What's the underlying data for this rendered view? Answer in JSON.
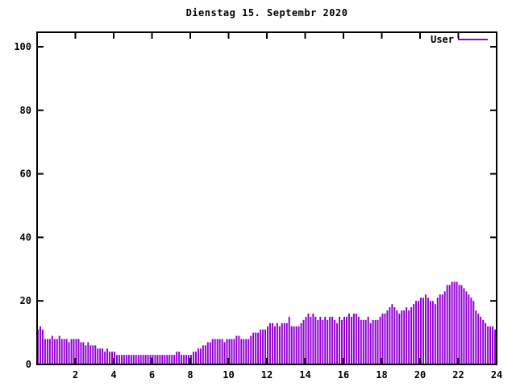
{
  "window": {
    "background": "#ffffff"
  },
  "chart_data": {
    "type": "bar",
    "title": "Dienstag 15. Septembr 2020",
    "xlabel": "",
    "ylabel": "",
    "x_unit": "hour of day",
    "xlim": [
      0,
      24
    ],
    "ylim": [
      0,
      104.5
    ],
    "xticks": [
      2,
      4,
      6,
      8,
      10,
      12,
      14,
      16,
      18,
      20,
      22,
      24
    ],
    "yticks": [
      0,
      20,
      40,
      60,
      80,
      100
    ],
    "grid": false,
    "legend_position": "top-right-inside",
    "legend": [
      {
        "name": "User",
        "color": "#9400d3"
      }
    ],
    "interval_minutes": 7.5,
    "series": [
      {
        "name": "User",
        "values": [
          11,
          12,
          11,
          8,
          8,
          8,
          9,
          8,
          8,
          9,
          8,
          8,
          8,
          7,
          8,
          8,
          8,
          8,
          7,
          7,
          6,
          7,
          6,
          6,
          6,
          5,
          5,
          5,
          4,
          5,
          4,
          4,
          4,
          3,
          3,
          3,
          3,
          3,
          3,
          3,
          3,
          3,
          3,
          3,
          3,
          3,
          3,
          3,
          3,
          3,
          3,
          3,
          3,
          3,
          3,
          3,
          3,
          3,
          4,
          4,
          3,
          3,
          3,
          3,
          3,
          4,
          4,
          5,
          5,
          6,
          6,
          7,
          7,
          8,
          8,
          8,
          8,
          8,
          7,
          8,
          8,
          8,
          8,
          9,
          9,
          8,
          8,
          8,
          8,
          9,
          10,
          10,
          10,
          11,
          11,
          11,
          12,
          13,
          13,
          12,
          13,
          12,
          13,
          13,
          13,
          15,
          12,
          12,
          12,
          12,
          13,
          14,
          15,
          16,
          15,
          16,
          15,
          14,
          15,
          14,
          15,
          14,
          15,
          15,
          14,
          13,
          15,
          14,
          15,
          15,
          16,
          15,
          16,
          16,
          15,
          14,
          14,
          14,
          15,
          13,
          14,
          14,
          14,
          15,
          16,
          16,
          17,
          18,
          19,
          18,
          17,
          16,
          17,
          17,
          18,
          17,
          18,
          19,
          20,
          20,
          21,
          21,
          22,
          21,
          20,
          20,
          19,
          21,
          22,
          22,
          23,
          25,
          25,
          26,
          26,
          26,
          25,
          25,
          24,
          23,
          22,
          21,
          20,
          17,
          16,
          15,
          14,
          13,
          12,
          12,
          12,
          11,
          9
        ]
      }
    ]
  },
  "colors": {
    "bar": "#9400d3",
    "axis": "#000000",
    "text": "#000000",
    "background": "#ffffff"
  }
}
